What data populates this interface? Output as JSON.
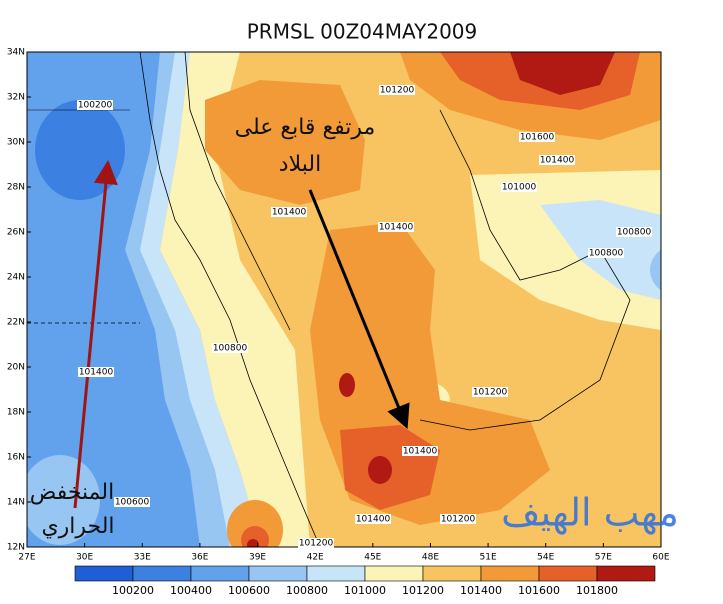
{
  "header": {
    "title": "PRMSL 00Z04MAY2009"
  },
  "map": {
    "lat_labels": [
      "34N",
      "32N",
      "30N",
      "28N",
      "26N",
      "24N",
      "22N",
      "20N",
      "18N",
      "16N",
      "14N",
      "12N"
    ],
    "lon_labels": [
      "27E",
      "30E",
      "33E",
      "36E",
      "39E",
      "42E",
      "45E",
      "48E",
      "51E",
      "54E",
      "57E",
      "60E"
    ],
    "contour_labels": [
      100200,
      101200,
      101600,
      101400,
      101000,
      101400,
      101400,
      100800,
      100800,
      100800,
      101400,
      101200,
      101400,
      100600,
      101400,
      101200,
      101200
    ],
    "annotations": [
      "مرتفع قابع على",
      "البلاد",
      "المنخفض",
      "الحراري"
    ],
    "watermark": "مهب الهيف"
  },
  "legend": {
    "labels": [
      100200,
      100400,
      100600,
      100800,
      101000,
      101200,
      101400,
      101600,
      101800
    ],
    "colors": [
      "#1e5fd6",
      "#3c80e2",
      "#62a2ec",
      "#98c6f3",
      "#c8e4f8",
      "#fcf3b6",
      "#f8c462",
      "#f29a38",
      "#e6602a",
      "#b01a12"
    ]
  }
}
